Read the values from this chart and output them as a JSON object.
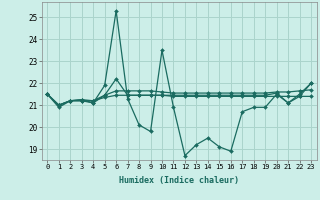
{
  "xlabel": "Humidex (Indice chaleur)",
  "background_color": "#cceee8",
  "grid_color": "#aad4cc",
  "line_color": "#1a6b60",
  "xlim": [
    -0.5,
    23.5
  ],
  "ylim": [
    18.5,
    25.7
  ],
  "yticks": [
    19,
    20,
    21,
    22,
    23,
    24,
    25
  ],
  "xticks": [
    0,
    1,
    2,
    3,
    4,
    5,
    6,
    7,
    8,
    9,
    10,
    11,
    12,
    13,
    14,
    15,
    16,
    17,
    18,
    19,
    20,
    21,
    22,
    23
  ],
  "lines": [
    [
      21.5,
      20.9,
      21.2,
      21.2,
      21.1,
      21.9,
      25.3,
      21.3,
      20.1,
      19.8,
      23.5,
      20.9,
      18.7,
      19.2,
      19.5,
      19.1,
      18.9,
      20.7,
      20.9,
      20.9,
      21.5,
      21.1,
      21.4,
      22.0
    ],
    [
      21.5,
      21.0,
      21.2,
      21.2,
      21.2,
      21.35,
      21.45,
      21.45,
      21.45,
      21.45,
      21.45,
      21.4,
      21.4,
      21.4,
      21.4,
      21.4,
      21.4,
      21.4,
      21.4,
      21.4,
      21.4,
      21.4,
      21.4,
      21.4
    ],
    [
      21.5,
      21.0,
      21.2,
      21.25,
      21.1,
      21.45,
      21.65,
      21.65,
      21.65,
      21.65,
      21.6,
      21.55,
      21.55,
      21.55,
      21.55,
      21.55,
      21.55,
      21.55,
      21.55,
      21.55,
      21.6,
      21.6,
      21.65,
      21.7
    ],
    [
      21.5,
      21.0,
      21.2,
      21.25,
      21.2,
      21.45,
      22.2,
      21.45,
      21.45,
      21.45,
      21.45,
      21.45,
      21.45,
      21.45,
      21.45,
      21.45,
      21.45,
      21.45,
      21.45,
      21.45,
      21.55,
      21.1,
      21.5,
      22.0
    ]
  ]
}
